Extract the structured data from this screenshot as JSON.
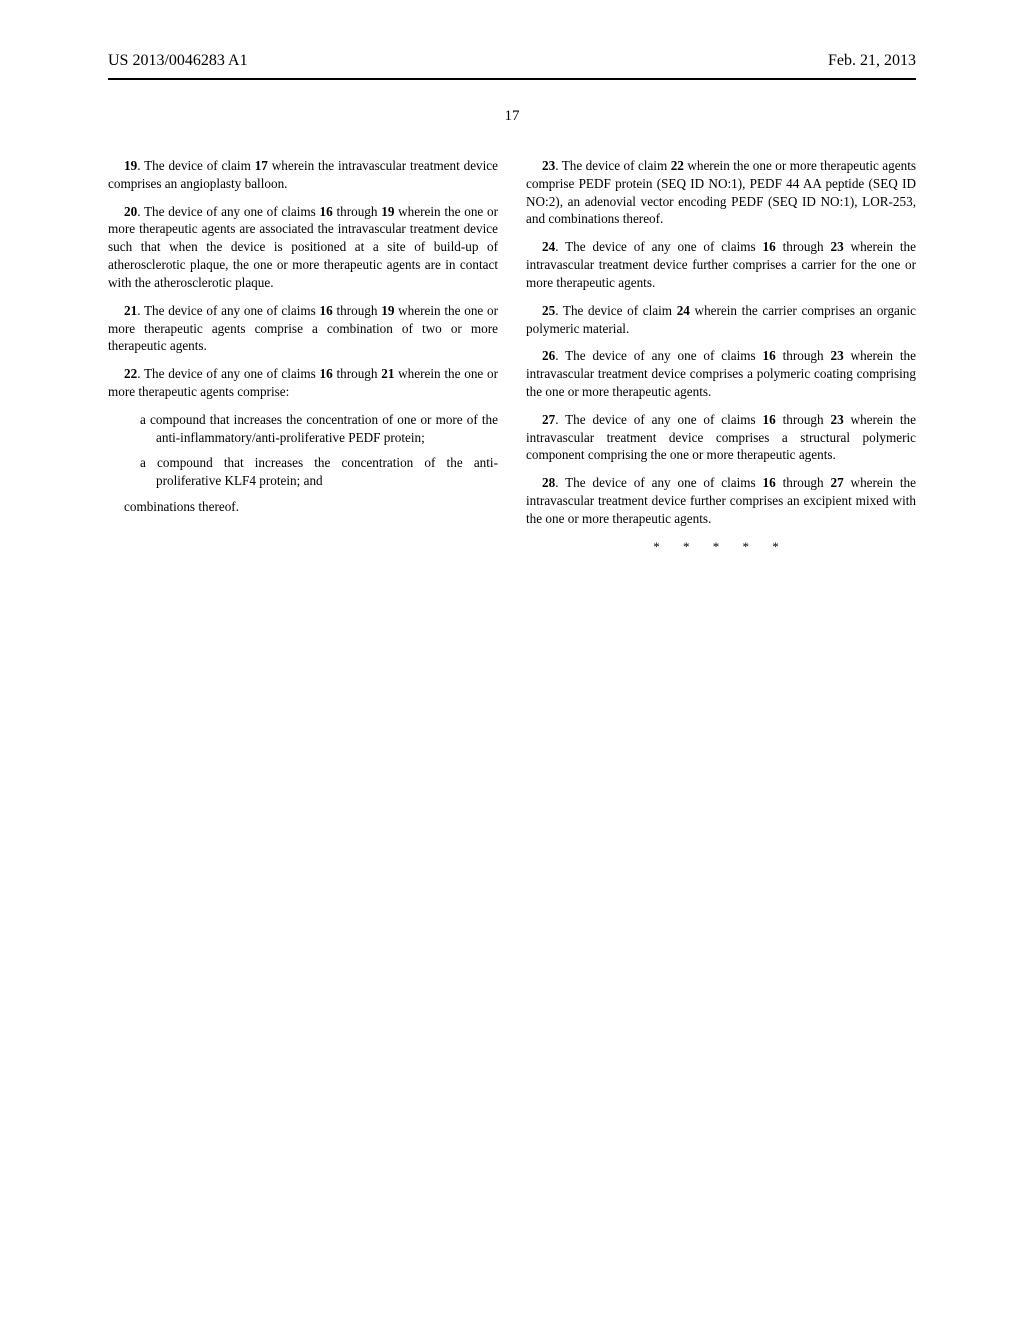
{
  "header": {
    "pub_number": "US 2013/0046283 A1",
    "pub_date": "Feb. 21, 2013"
  },
  "page_number": "17",
  "claims_left": [
    {
      "num": "19",
      "text": ". The device of claim ",
      "ref": "17",
      "tail": " wherein the intravascular treatment device comprises an angioplasty balloon."
    },
    {
      "num": "20",
      "text": ". The device of any one of claims ",
      "ref": "16",
      "mid": " through ",
      "ref2": "19",
      "tail": " wherein the one or more therapeutic agents are associated the intravascular treatment device such that when the device is positioned at a site of build-up of atherosclerotic plaque, the one or more therapeutic agents are in contact with the atherosclerotic plaque."
    },
    {
      "num": "21",
      "text": ". The device of any one of claims ",
      "ref": "16",
      "mid": " through ",
      "ref2": "19",
      "tail": " wherein the one or more therapeutic agents comprise a combination of two or more therapeutic agents."
    },
    {
      "num": "22",
      "text": ". The device of any one of claims ",
      "ref": "16",
      "mid": " through ",
      "ref2": "21",
      "tail": " wherein the one or more therapeutic agents comprise:"
    }
  ],
  "sub_items": [
    "a compound that increases the concentration of one or more of the anti-inflammatory/anti-proliferative PEDF protein;",
    "a compound that increases the concentration of the anti-proliferative KLF4 protein; and"
  ],
  "sub_final": "combinations thereof.",
  "claims_right": [
    {
      "num": "23",
      "text": ". The device of claim ",
      "ref": "22",
      "tail": " wherein the one or more therapeutic agents comprise PEDF protein (SEQ ID NO:1), PEDF 44 AA peptide (SEQ ID NO:2), an adenovial vector encoding PEDF (SEQ ID NO:1), LOR-253, and combinations thereof."
    },
    {
      "num": "24",
      "text": ". The device of any one of claims ",
      "ref": "16",
      "mid": " through ",
      "ref2": "23",
      "tail": " wherein the intravascular treatment device further comprises a carrier for the one or more therapeutic agents."
    },
    {
      "num": "25",
      "text": ". The device of claim ",
      "ref": "24",
      "tail": " wherein the carrier comprises an organic polymeric material."
    },
    {
      "num": "26",
      "text": ". The device of any one of claims ",
      "ref": "16",
      "mid": " through ",
      "ref2": "23",
      "tail": " wherein the intravascular treatment device comprises a polymeric coating comprising the one or more therapeutic agents."
    },
    {
      "num": "27",
      "text": ". The device of any one of claims ",
      "ref": "16",
      "mid": " through ",
      "ref2": "23",
      "tail": " wherein the intravascular treatment device comprises a structural polymeric component comprising the one or more therapeutic agents."
    },
    {
      "num": "28",
      "text": ". The device of any one of claims ",
      "ref": "16",
      "mid": " through ",
      "ref2": "27",
      "tail": " wherein the intravascular treatment device further comprises an excipient mixed with the one or more therapeutic agents."
    }
  ],
  "end_marks": "* * * * *"
}
